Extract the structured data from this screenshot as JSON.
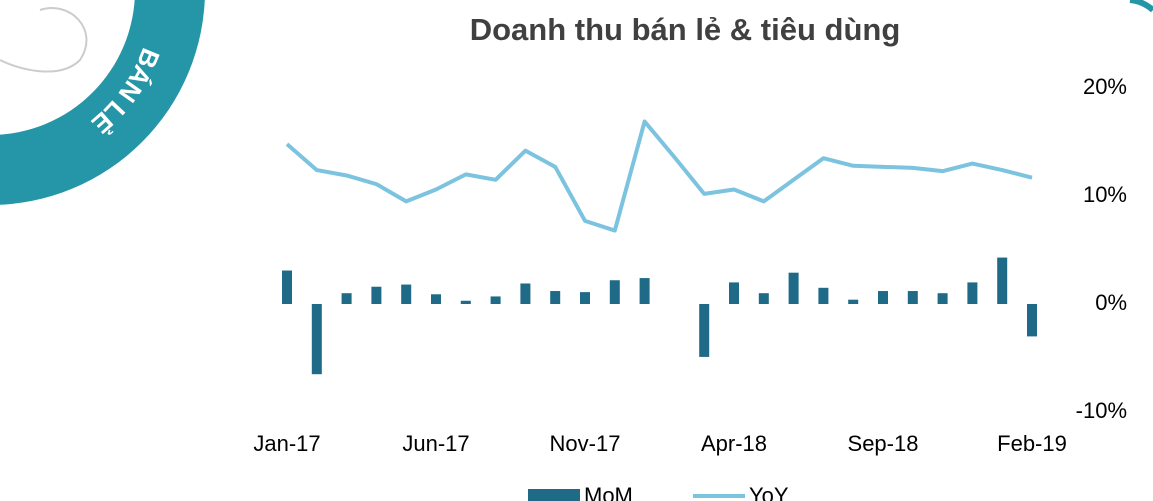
{
  "badge": "BÁN LẺ",
  "chart_data": {
    "type": "bar-line",
    "title": "Doanh thu bán lẻ & tiêu dùng",
    "categories": [
      "Jan-17",
      null,
      null,
      null,
      null,
      "Jun-17",
      null,
      null,
      null,
      null,
      "Nov-17",
      null,
      null,
      null,
      null,
      "Apr-18",
      null,
      null,
      null,
      null,
      "Sep-18",
      null,
      null,
      null,
      null,
      "Feb-19"
    ],
    "series": [
      {
        "name": "MoM",
        "type": "bar",
        "color": "#1f6a87",
        "values": [
          3.1,
          -6.5,
          1.0,
          1.6,
          1.8,
          0.9,
          0.3,
          0.7,
          1.9,
          1.2,
          1.1,
          2.2,
          2.4,
          null,
          -4.9,
          2.0,
          1.0,
          2.9,
          1.5,
          0.4,
          1.2,
          1.2,
          1.0,
          2.0,
          4.3,
          -3.0
        ]
      },
      {
        "name": "YoY",
        "type": "line",
        "color": "#7cc3e0",
        "values": [
          14.8,
          12.4,
          11.9,
          11.1,
          9.5,
          10.6,
          12.0,
          11.5,
          14.2,
          12.7,
          7.7,
          6.8,
          16.9,
          13.6,
          10.2,
          10.6,
          9.5,
          11.5,
          13.5,
          12.8,
          12.7,
          12.6,
          12.3,
          13.0,
          12.4,
          11.7
        ]
      }
    ],
    "ylim": [
      -10,
      20
    ],
    "yticks": [
      {
        "value": -10,
        "label": "-10%"
      },
      {
        "value": 0,
        "label": "0%"
      },
      {
        "value": 10,
        "label": "10%"
      },
      {
        "value": 20,
        "label": "20%"
      }
    ],
    "grid": false
  }
}
